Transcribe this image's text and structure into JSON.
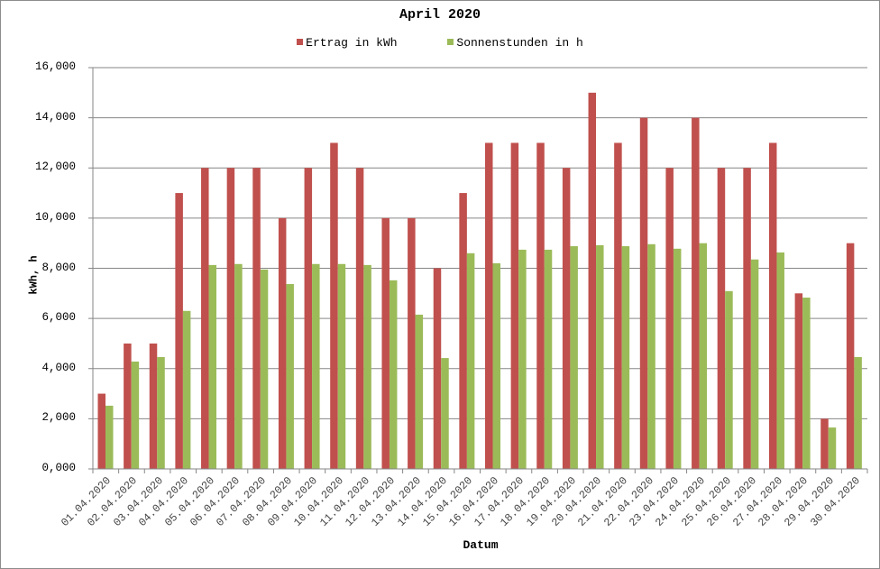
{
  "chart_data": {
    "type": "bar",
    "title": "April 2020",
    "xlabel": "Datum",
    "ylabel": "kWh, h",
    "ylim": [
      0,
      16
    ],
    "yticks": [
      "0,000",
      "2,000",
      "4,000",
      "6,000",
      "8,000",
      "10,000",
      "12,000",
      "14,000",
      "16,000"
    ],
    "grid": true,
    "legend_position": "top",
    "categories": [
      "01.04.2020",
      "02.04.2020",
      "03.04.2020",
      "04.04.2020",
      "05.04.2020",
      "06.04.2020",
      "07.04.2020",
      "08.04.2020",
      "09.04.2020",
      "10.04.2020",
      "11.04.2020",
      "12.04.2020",
      "13.04.2020",
      "14.04.2020",
      "15.04.2020",
      "16.04.2020",
      "17.04.2020",
      "18.04.2020",
      "19.04.2020",
      "20.04.2020",
      "21.04.2020",
      "22.04.2020",
      "23.04.2020",
      "24.04.2020",
      "25.04.2020",
      "26.04.2020",
      "27.04.2020",
      "28.04.2020",
      "29.04.2020",
      "30.04.2020"
    ],
    "series": [
      {
        "name": "Ertrag in kWh",
        "color": "#c0504d",
        "values": [
          3,
          5,
          5,
          11,
          12,
          12,
          12,
          10,
          12,
          13,
          12,
          10,
          10,
          8,
          11,
          13,
          13,
          13,
          12,
          15,
          13,
          14,
          12,
          14,
          12,
          12,
          13,
          7,
          2,
          9
        ]
      },
      {
        "name": "Sonnenstunden in h",
        "color": "#9bbb59",
        "values": [
          2.52,
          4.28,
          4.46,
          6.3,
          8.13,
          8.17,
          7.95,
          7.37,
          8.17,
          8.17,
          8.13,
          7.52,
          6.15,
          4.42,
          8.6,
          8.2,
          8.74,
          8.74,
          8.88,
          8.92,
          8.88,
          8.96,
          8.78,
          9.0,
          7.09,
          8.35,
          8.63,
          6.83,
          1.65,
          4.46
        ]
      }
    ]
  }
}
